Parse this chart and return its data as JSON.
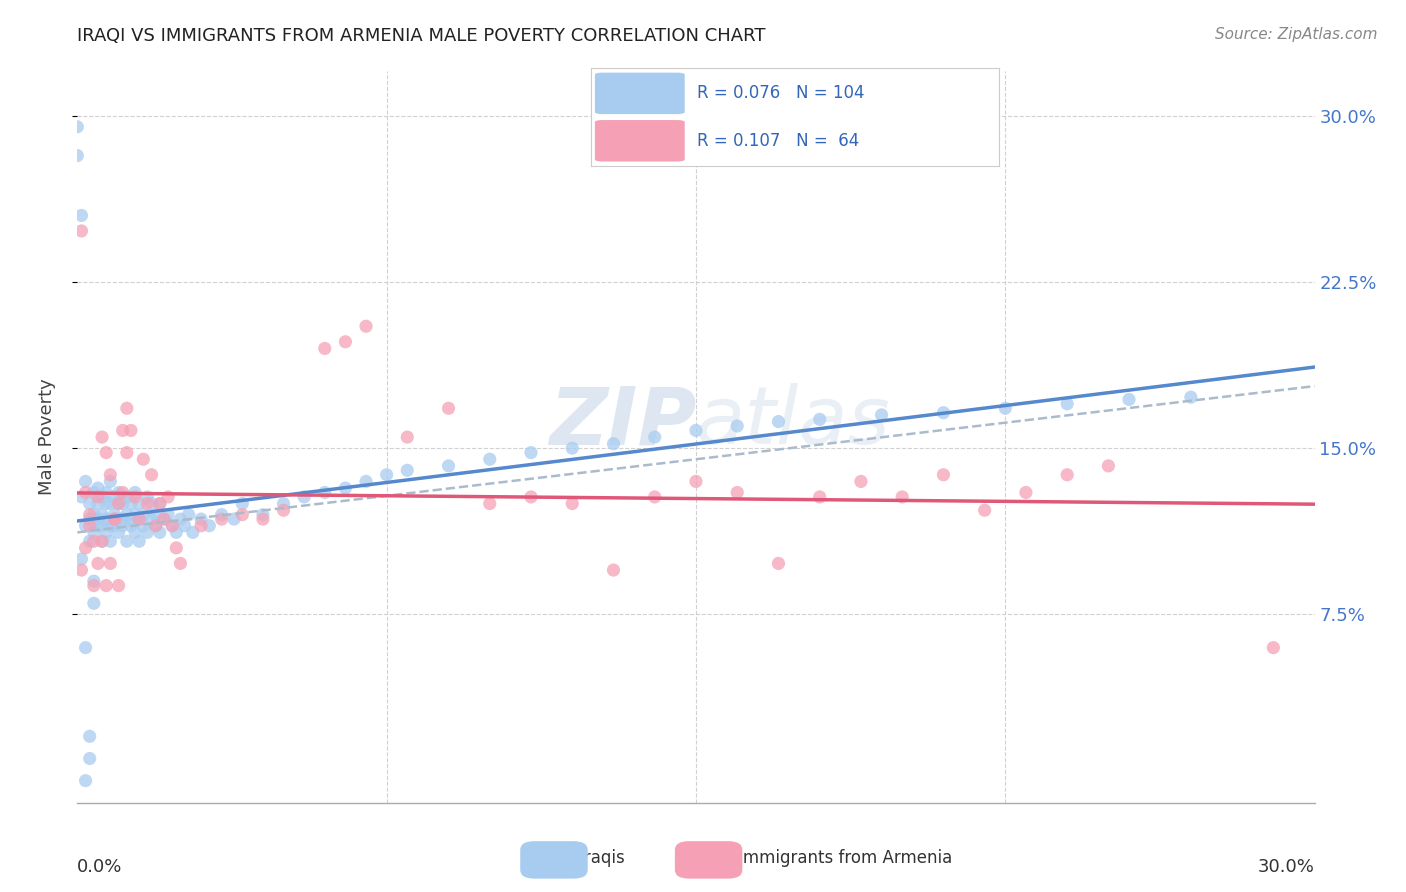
{
  "title": "IRAQI VS IMMIGRANTS FROM ARMENIA MALE POVERTY CORRELATION CHART",
  "source": "Source: ZipAtlas.com",
  "ylabel": "Male Poverty",
  "xlim": [
    0.0,
    0.3
  ],
  "ylim": [
    -0.01,
    0.32
  ],
  "yticks": [
    0.075,
    0.15,
    0.225,
    0.3
  ],
  "ytick_labels": [
    "7.5%",
    "15.0%",
    "22.5%",
    "30.0%"
  ],
  "color_iraqi": "#a8ccf0",
  "color_armenia": "#f5a0b5",
  "trendline_iraqi_color": "#5588cc",
  "trendline_armenia_color": "#e05878",
  "trendline_dashed_color": "#aabbcc",
  "watermark_color": "#c8d8e8",
  "label_iraqi": "Iraqis",
  "label_armenia": "Immigrants from Armenia",
  "legend_r1": "R = 0.076",
  "legend_n1": "N = 104",
  "legend_r2": "R = 0.107",
  "legend_n2": "N =  64",
  "iraqi_x": [
    0.001,
    0.002,
    0.002,
    0.003,
    0.003,
    0.003,
    0.004,
    0.004,
    0.004,
    0.005,
    0.005,
    0.005,
    0.005,
    0.006,
    0.006,
    0.006,
    0.006,
    0.007,
    0.007,
    0.007,
    0.007,
    0.008,
    0.008,
    0.008,
    0.008,
    0.009,
    0.009,
    0.009,
    0.01,
    0.01,
    0.01,
    0.01,
    0.011,
    0.011,
    0.011,
    0.012,
    0.012,
    0.012,
    0.013,
    0.013,
    0.013,
    0.014,
    0.014,
    0.014,
    0.015,
    0.015,
    0.015,
    0.016,
    0.016,
    0.017,
    0.017,
    0.018,
    0.018,
    0.019,
    0.019,
    0.02,
    0.02,
    0.021,
    0.022,
    0.023,
    0.024,
    0.025,
    0.026,
    0.027,
    0.028,
    0.03,
    0.032,
    0.035,
    0.038,
    0.04,
    0.045,
    0.05,
    0.055,
    0.06,
    0.065,
    0.07,
    0.075,
    0.08,
    0.09,
    0.1,
    0.11,
    0.12,
    0.13,
    0.14,
    0.15,
    0.16,
    0.17,
    0.18,
    0.195,
    0.21,
    0.225,
    0.24,
    0.255,
    0.27,
    0.0,
    0.001,
    0.002,
    0.003,
    0.004,
    0.0,
    0.001,
    0.002,
    0.003,
    0.004
  ],
  "iraqi_y": [
    0.128,
    0.115,
    0.135,
    0.118,
    0.125,
    0.108,
    0.12,
    0.112,
    0.13,
    0.118,
    0.125,
    0.115,
    0.132,
    0.108,
    0.12,
    0.128,
    0.115,
    0.118,
    0.125,
    0.112,
    0.13,
    0.115,
    0.125,
    0.108,
    0.135,
    0.12,
    0.115,
    0.128,
    0.118,
    0.125,
    0.112,
    0.13,
    0.118,
    0.125,
    0.115,
    0.12,
    0.108,
    0.128,
    0.115,
    0.118,
    0.125,
    0.112,
    0.12,
    0.13,
    0.108,
    0.118,
    0.125,
    0.115,
    0.12,
    0.112,
    0.128,
    0.118,
    0.125,
    0.115,
    0.12,
    0.112,
    0.125,
    0.118,
    0.12,
    0.115,
    0.112,
    0.118,
    0.115,
    0.12,
    0.112,
    0.118,
    0.115,
    0.12,
    0.118,
    0.125,
    0.12,
    0.125,
    0.128,
    0.13,
    0.132,
    0.135,
    0.138,
    0.14,
    0.142,
    0.145,
    0.148,
    0.15,
    0.152,
    0.155,
    0.158,
    0.16,
    0.162,
    0.163,
    0.165,
    0.166,
    0.168,
    0.17,
    0.172,
    0.173,
    0.282,
    0.255,
    0.0,
    0.02,
    0.08,
    0.295,
    0.1,
    0.06,
    0.01,
    0.09
  ],
  "armenia_x": [
    0.001,
    0.002,
    0.003,
    0.004,
    0.005,
    0.006,
    0.007,
    0.008,
    0.009,
    0.01,
    0.011,
    0.012,
    0.013,
    0.014,
    0.015,
    0.016,
    0.017,
    0.018,
    0.019,
    0.02,
    0.021,
    0.022,
    0.023,
    0.024,
    0.025,
    0.03,
    0.035,
    0.04,
    0.045,
    0.05,
    0.06,
    0.065,
    0.07,
    0.08,
    0.09,
    0.1,
    0.11,
    0.12,
    0.13,
    0.14,
    0.15,
    0.16,
    0.17,
    0.18,
    0.19,
    0.2,
    0.21,
    0.22,
    0.23,
    0.24,
    0.25,
    0.001,
    0.002,
    0.003,
    0.004,
    0.005,
    0.006,
    0.007,
    0.008,
    0.009,
    0.01,
    0.011,
    0.012,
    0.29
  ],
  "armenia_y": [
    0.248,
    0.13,
    0.12,
    0.108,
    0.128,
    0.155,
    0.148,
    0.138,
    0.118,
    0.125,
    0.13,
    0.148,
    0.158,
    0.128,
    0.118,
    0.145,
    0.125,
    0.138,
    0.115,
    0.125,
    0.118,
    0.128,
    0.115,
    0.105,
    0.098,
    0.115,
    0.118,
    0.12,
    0.118,
    0.122,
    0.195,
    0.198,
    0.205,
    0.155,
    0.168,
    0.125,
    0.128,
    0.125,
    0.095,
    0.128,
    0.135,
    0.13,
    0.098,
    0.128,
    0.135,
    0.128,
    0.138,
    0.122,
    0.13,
    0.138,
    0.142,
    0.095,
    0.105,
    0.115,
    0.088,
    0.098,
    0.108,
    0.088,
    0.098,
    0.118,
    0.088,
    0.158,
    0.168,
    0.06
  ]
}
